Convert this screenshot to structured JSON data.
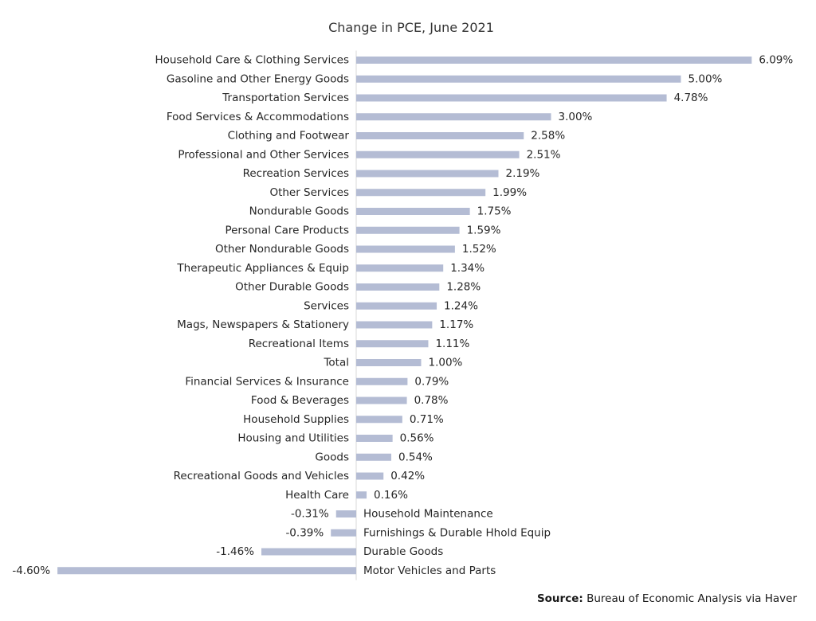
{
  "chart_data": {
    "type": "bar",
    "orientation": "horizontal",
    "title": "Change in PCE, June 2021",
    "xlabel": "",
    "ylabel": "",
    "value_suffix": "%",
    "bar_color": "#b4bcd4",
    "axis_color": "#d9d9d9",
    "categories": [
      "Household Care & Clothing Services",
      "Gasoline and Other Energy Goods",
      "Transportation Services",
      "Food Services & Accommodations",
      "Clothing and Footwear",
      "Professional and Other Services",
      "Recreation Services",
      "Other Services",
      "Nondurable Goods",
      "Personal Care Products",
      "Other Nondurable Goods",
      "Therapeutic Appliances & Equip",
      "Other Durable Goods",
      "Services",
      "Mags, Newspapers & Stationery",
      "Recreational Items",
      "Total",
      "Financial Services & Insurance",
      "Food & Beverages",
      "Household Supplies",
      "Housing and Utilities",
      "Goods",
      "Recreational Goods and Vehicles",
      "Health Care",
      "Household Maintenance",
      "Furnishings & Durable Hhold Equip",
      "Durable Goods",
      "Motor Vehicles and Parts"
    ],
    "values": [
      6.09,
      5.0,
      4.78,
      3.0,
      2.58,
      2.51,
      2.19,
      1.99,
      1.75,
      1.59,
      1.52,
      1.34,
      1.28,
      1.24,
      1.17,
      1.11,
      1.0,
      0.79,
      0.78,
      0.71,
      0.56,
      0.54,
      0.42,
      0.16,
      -0.31,
      -0.39,
      -1.46,
      -4.6
    ],
    "data_labels": [
      "6.09%",
      "5.00%",
      "4.78%",
      "3.00%",
      "2.58%",
      "2.51%",
      "2.19%",
      "1.99%",
      "1.75%",
      "1.59%",
      "1.52%",
      "1.34%",
      "1.28%",
      "1.24%",
      "1.17%",
      "1.11%",
      "1.00%",
      "0.79%",
      "0.78%",
      "0.71%",
      "0.56%",
      "0.54%",
      "0.42%",
      "0.16%",
      "-0.31%",
      "-0.39%",
      "-1.46%",
      "-4.60%"
    ],
    "grid": false,
    "legend": "none"
  },
  "source": {
    "label": "Source:",
    "text": "Bureau of Economic Analysis via Haver"
  }
}
